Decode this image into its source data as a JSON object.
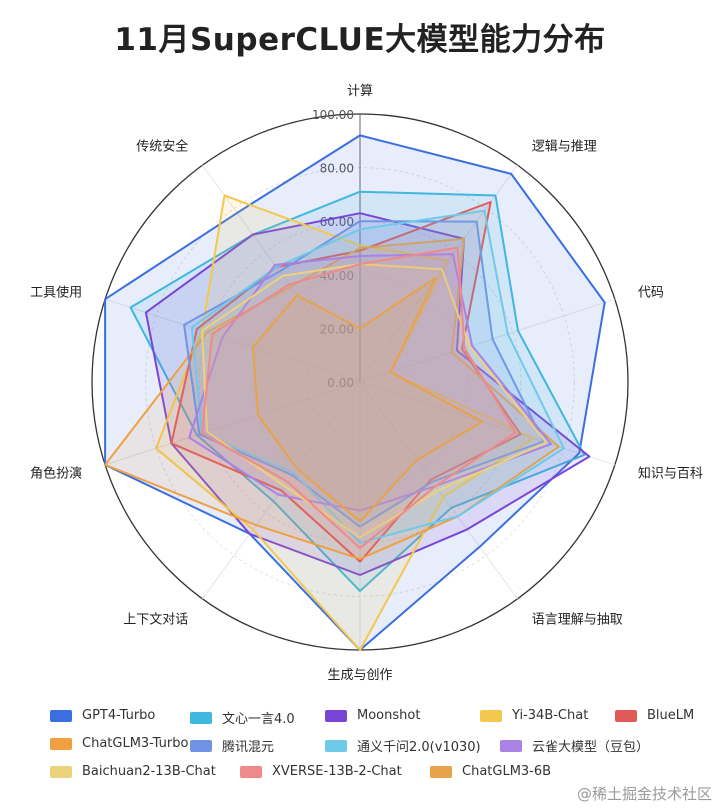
{
  "chart_data": {
    "type": "radar",
    "title": "11月SuperCLUE大模型能力分布",
    "axes": [
      "计算",
      "逻辑与推理",
      "代码",
      "知识与百科",
      "语言理解与抽取",
      "生成与创作",
      "上下文对话",
      "角色扮演",
      "工具使用",
      "传统安全"
    ],
    "rlim": [
      0,
      100
    ],
    "rticks": [
      "0.00",
      "20.00",
      "40.00",
      "60.00",
      "80.00",
      "100.00"
    ],
    "grid": true,
    "legend_position": "bottom",
    "series": [
      {
        "name": "GPT4-Turbo",
        "color": "#3b6fe0",
        "values": [
          92,
          96,
          96,
          86,
          76,
          100,
          70,
          100,
          100,
          78
        ]
      },
      {
        "name": "文心一言4.0",
        "color": "#3fb7de",
        "values": [
          71,
          86,
          62,
          88,
          58,
          78,
          55,
          64,
          90,
          68
        ]
      },
      {
        "name": "Moonshot",
        "color": "#7a45d6",
        "values": [
          63,
          66,
          38,
          90,
          68,
          72,
          70,
          74,
          84,
          68
        ]
      },
      {
        "name": "Yi-34B-Chat",
        "color": "#f2c94c",
        "values": [
          51,
          56,
          12,
          68,
          53,
          100,
          68,
          80,
          62,
          86
        ]
      },
      {
        "name": "BlueLM",
        "color": "#e05a5a",
        "values": [
          49,
          83,
          40,
          63,
          45,
          67,
          50,
          74,
          64,
          53
        ]
      },
      {
        "name": "ChatGLM3-Turbo",
        "color": "#f0a040",
        "values": [
          50,
          66,
          36,
          78,
          62,
          66,
          66,
          100,
          60,
          44
        ]
      },
      {
        "name": "腾讯混元",
        "color": "#6f94e6",
        "values": [
          60,
          74,
          52,
          72,
          46,
          54,
          43,
          63,
          69,
          51
        ]
      },
      {
        "name": "通义千问2.0(v1030)",
        "color": "#6fc9e8",
        "values": [
          57,
          79,
          58,
          80,
          62,
          60,
          42,
          62,
          66,
          53
        ]
      },
      {
        "name": "云雀大模型（豆包）",
        "color": "#a982e6",
        "values": [
          47,
          59,
          44,
          75,
          48,
          48,
          52,
          67,
          54,
          54
        ]
      },
      {
        "name": "Baichuan2-13B-Chat",
        "color": "#ecd27a",
        "values": [
          44,
          52,
          43,
          73,
          50,
          58,
          48,
          60,
          62,
          49
        ]
      },
      {
        "name": "XVERSE-13B-2-Chat",
        "color": "#ee8a8a",
        "values": [
          44,
          62,
          41,
          61,
          48,
          62,
          46,
          62,
          58,
          45
        ]
      },
      {
        "name": "ChatGLM3-6B",
        "color": "#e8a24a",
        "values": [
          20,
          48,
          12,
          48,
          36,
          52,
          40,
          40,
          42,
          40
        ]
      }
    ]
  },
  "watermark": "@稀土掘金技术社区"
}
